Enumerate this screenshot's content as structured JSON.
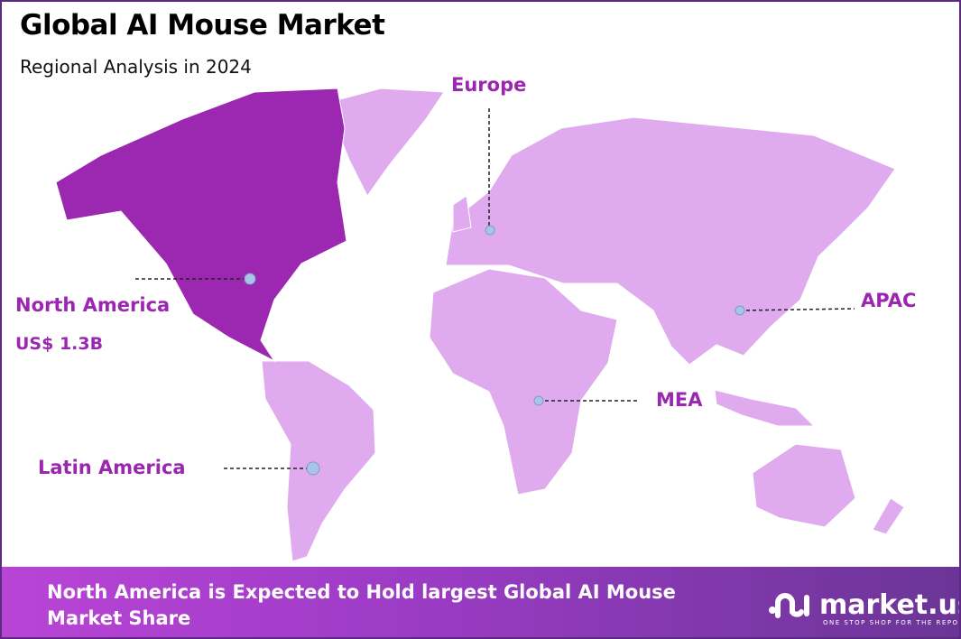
{
  "header": {
    "title": "Global AI Mouse Market",
    "subtitle": "Regional Analysis in 2024"
  },
  "colors": {
    "highlight_region": "#9c27b0",
    "other_regions": "#dfaaee",
    "label": "#9b27b0",
    "marker": "#a9c4ea",
    "banner_start": "#b944d6",
    "banner_end": "#6a3596"
  },
  "regions": [
    {
      "name": "North America",
      "value": "US$ 1.3B",
      "highlighted": true
    },
    {
      "name": "Europe",
      "highlighted": false
    },
    {
      "name": "APAC",
      "highlighted": false
    },
    {
      "name": "MEA",
      "highlighted": false
    },
    {
      "name": "Latin America",
      "highlighted": false
    }
  ],
  "footer": {
    "text": "North America is Expected to Hold largest Global AI Mouse Market Share",
    "logo_name": "market.us",
    "logo_tagline": "ONE STOP SHOP FOR THE REPORTS"
  }
}
